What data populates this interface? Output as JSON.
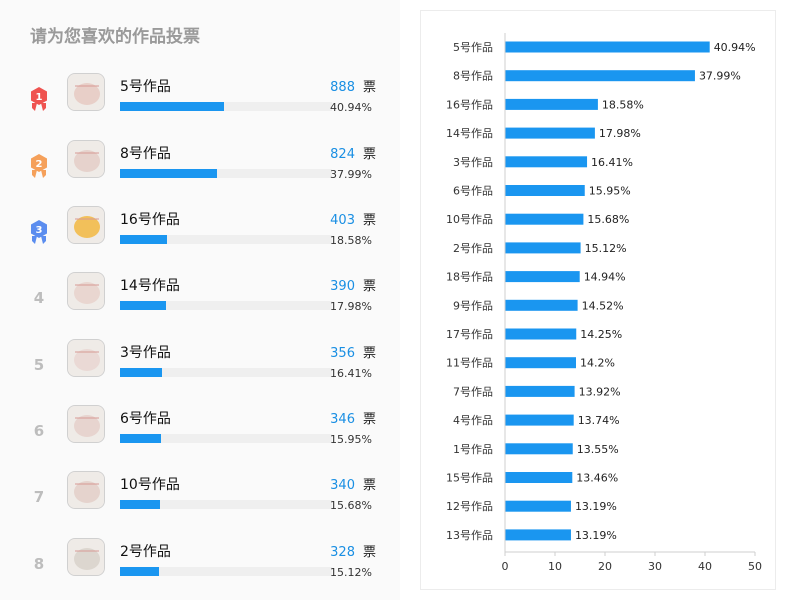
{
  "left_panel": {
    "title": "请为您喜欢的作品投票",
    "vote_unit": "票",
    "items": [
      {
        "rank": "1",
        "medal": "gold",
        "name": "5号作品",
        "votes": "888",
        "percent": "40.94%",
        "fraction": 0.4094
      },
      {
        "rank": "2",
        "medal": "silver",
        "name": "8号作品",
        "votes": "824",
        "percent": "37.99%",
        "fraction": 0.3799
      },
      {
        "rank": "3",
        "medal": "bronze",
        "name": "16号作品",
        "votes": "403",
        "percent": "18.58%",
        "fraction": 0.1858
      },
      {
        "rank": "4",
        "medal": "",
        "name": "14号作品",
        "votes": "390",
        "percent": "17.98%",
        "fraction": 0.1798
      },
      {
        "rank": "5",
        "medal": "",
        "name": "3号作品",
        "votes": "356",
        "percent": "16.41%",
        "fraction": 0.1641
      },
      {
        "rank": "6",
        "medal": "",
        "name": "6号作品",
        "votes": "346",
        "percent": "15.95%",
        "fraction": 0.1595
      },
      {
        "rank": "7",
        "medal": "",
        "name": "10号作品",
        "votes": "340",
        "percent": "15.68%",
        "fraction": 0.1568
      },
      {
        "rank": "8",
        "medal": "",
        "name": "2号作品",
        "votes": "328",
        "percent": "15.12%",
        "fraction": 0.1512
      }
    ]
  },
  "colors": {
    "bar": "#1a96f0",
    "vote_count": "#1a8fe3",
    "medal_gold": "#ef5350",
    "medal_silver": "#f5a05a",
    "medal_bronze": "#5b8def"
  },
  "chart_data": {
    "type": "bar",
    "orientation": "horizontal",
    "categories": [
      "5号作品",
      "8号作品",
      "16号作品",
      "14号作品",
      "3号作品",
      "6号作品",
      "10号作品",
      "2号作品",
      "18号作品",
      "9号作品",
      "17号作品",
      "11号作品",
      "7号作品",
      "4号作品",
      "1号作品",
      "15号作品",
      "12号作品",
      "13号作品"
    ],
    "values": [
      40.94,
      37.99,
      18.58,
      17.98,
      16.41,
      15.95,
      15.68,
      15.12,
      14.94,
      14.52,
      14.25,
      14.2,
      13.92,
      13.74,
      13.55,
      13.46,
      13.19,
      13.19
    ],
    "value_labels": [
      "40.94%",
      "37.99%",
      "18.58%",
      "17.98%",
      "16.41%",
      "15.95%",
      "15.68%",
      "15.12%",
      "14.94%",
      "14.52%",
      "14.25%",
      "14.2%",
      "13.92%",
      "13.74%",
      "13.55%",
      "13.46%",
      "13.19%",
      "13.19%"
    ],
    "xticks": [
      "0",
      "10",
      "20",
      "30",
      "40",
      "50"
    ],
    "xlim": [
      0,
      50
    ],
    "title": "",
    "xlabel": "",
    "ylabel": "",
    "grid": false,
    "legend": "none"
  }
}
